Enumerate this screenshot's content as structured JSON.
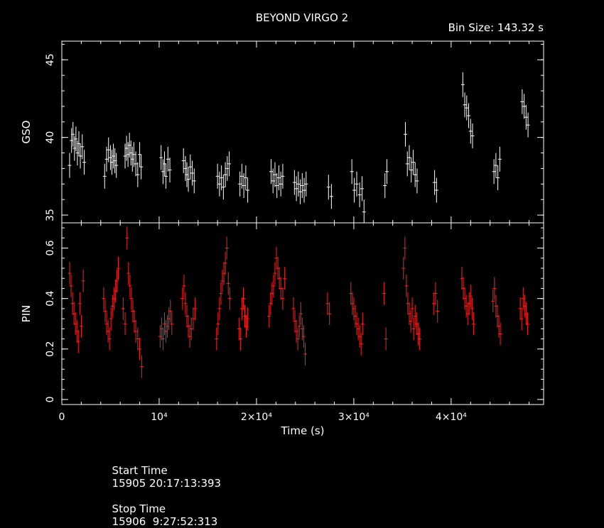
{
  "title": "BEYOND VIRGO 2",
  "bin_size_label": "Bin Size: 143.32 s",
  "footer": {
    "start_label": "Start Time",
    "start_value": "15905 20:17:13:393",
    "stop_label": "Stop Time",
    "stop_value": "15906  9:27:52:313"
  },
  "colors": {
    "background": "#000000",
    "axes": "#ffffff",
    "gso": "#ffffff",
    "pin": "#ff2020"
  },
  "chart_data": [
    {
      "type": "scatter",
      "name": "GSO",
      "ylabel": "GSO",
      "xlabel": "",
      "xlim": [
        0,
        49500
      ],
      "ylim": [
        34.5,
        46.2
      ],
      "yticks": [
        35,
        40,
        45
      ],
      "ytick_labels": [
        "35",
        "40",
        "45"
      ],
      "yerr": 0.8,
      "x": [
        800,
        1000,
        1150,
        1300,
        1450,
        1600,
        1750,
        1900,
        2100,
        2300,
        4400,
        4600,
        4800,
        5000,
        5150,
        5300,
        5450,
        5600,
        6500,
        6650,
        6800,
        6950,
        7100,
        7250,
        7400,
        7600,
        7800,
        8000,
        8150,
        10200,
        10400,
        10550,
        10700,
        10900,
        11100,
        12500,
        12700,
        12850,
        13000,
        13200,
        13400,
        13600,
        16000,
        16200,
        16400,
        16600,
        16800,
        17000,
        17200,
        18300,
        18500,
        18700,
        18900,
        19100,
        21500,
        21700,
        21900,
        22100,
        22300,
        22500,
        22700,
        23900,
        24100,
        24300,
        24500,
        24700,
        24900,
        25100,
        27400,
        27700,
        29800,
        30050,
        30300,
        30600,
        30850,
        31050,
        33200,
        33400,
        35300,
        35500,
        35700,
        35900,
        36100,
        36300,
        36500,
        38300,
        38500,
        41200,
        41400,
        41600,
        41800,
        42000,
        42200,
        44400,
        44600,
        44800,
        45000,
        47300,
        47500,
        47700,
        47900
      ],
      "y": [
        38.2,
        39.8,
        40.2,
        39.3,
        39.9,
        39.0,
        39.6,
        38.8,
        39.4,
        38.4,
        37.5,
        38.6,
        39.2,
        38.7,
        38.4,
        38.8,
        38.5,
        38.2,
        38.8,
        39.3,
        38.9,
        39.5,
        39.0,
        38.6,
        38.9,
        38.3,
        37.6,
        38.9,
        38.1,
        38.7,
        37.8,
        38.3,
        37.5,
        38.6,
        37.9,
        38.5,
        38.0,
        37.6,
        37.3,
        38.1,
        37.7,
        37.2,
        37.5,
        37.0,
        37.4,
        36.8,
        37.6,
        38.0,
        38.3,
        37.0,
        37.5,
        36.9,
        37.4,
        36.6,
        37.8,
        37.2,
        37.6,
        36.9,
        37.4,
        37.0,
        37.5,
        37.1,
        36.7,
        37.0,
        36.5,
        36.9,
        36.6,
        37.0,
        36.8,
        36.2,
        37.8,
        36.6,
        37.0,
        36.3,
        36.7,
        35.2,
        36.9,
        37.8,
        40.2,
        38.3,
        38.7,
        37.9,
        38.4,
        37.6,
        37.2,
        37.1,
        36.6,
        43.4,
        42.1,
        41.9,
        41.4,
        40.4,
        40.1,
        37.8,
        38.2,
        37.4,
        38.6,
        42.3,
        42.0,
        41.3,
        40.8
      ]
    },
    {
      "type": "scatter",
      "name": "PIN",
      "ylabel": "PIN",
      "xlabel": "Time (s)",
      "xlim": [
        0,
        49500
      ],
      "ylim": [
        -0.02,
        0.7
      ],
      "yticks": [
        0,
        0.2,
        0.4,
        0.6
      ],
      "ytick_labels": [
        "0",
        "0.2",
        "0.4",
        "0.6"
      ],
      "xticks": [
        0,
        10000,
        20000,
        30000,
        40000
      ],
      "xtick_labels": [
        "0",
        "10⁴",
        "2×10⁴",
        "3×10⁴",
        "4×10⁴"
      ],
      "yerr": 0.045,
      "x": [
        800,
        950,
        1100,
        1250,
        1400,
        1550,
        1700,
        1850,
        2000,
        2200,
        4300,
        4450,
        4600,
        4750,
        4900,
        5050,
        5200,
        5350,
        5500,
        5650,
        5800,
        6300,
        6500,
        6700,
        6850,
        7000,
        7150,
        7300,
        7450,
        7600,
        7800,
        8000,
        8200,
        10100,
        10250,
        10400,
        10550,
        10700,
        10850,
        11000,
        11150,
        11300,
        12400,
        12550,
        12700,
        12850,
        13000,
        13150,
        13300,
        13500,
        13700,
        15900,
        16050,
        16200,
        16350,
        16500,
        16650,
        16800,
        16950,
        17100,
        17250,
        18200,
        18350,
        18500,
        18650,
        18800,
        18950,
        19100,
        21300,
        21450,
        21600,
        21750,
        21900,
        22050,
        22200,
        22350,
        22500,
        22700,
        22900,
        23800,
        23950,
        24100,
        24250,
        24400,
        24550,
        24700,
        24850,
        25000,
        27300,
        27500,
        29700,
        29850,
        30000,
        30150,
        30300,
        30450,
        30600,
        30750,
        30900,
        33100,
        33300,
        35100,
        35250,
        35400,
        35550,
        35700,
        35850,
        36000,
        36150,
        36300,
        36450,
        36600,
        36750,
        38200,
        38400,
        38600,
        41100,
        41250,
        41400,
        41550,
        41700,
        41850,
        42000,
        42150,
        42300,
        44300,
        44450,
        44600,
        44750,
        44900,
        45050,
        47100,
        47250,
        47400,
        47550,
        47700,
        47850
      ],
      "y": [
        0.5,
        0.45,
        0.38,
        0.34,
        0.3,
        0.27,
        0.23,
        0.38,
        0.29,
        0.47,
        0.4,
        0.35,
        0.3,
        0.27,
        0.24,
        0.32,
        0.37,
        0.4,
        0.43,
        0.47,
        0.52,
        0.36,
        0.3,
        0.64,
        0.5,
        0.45,
        0.4,
        0.35,
        0.31,
        0.27,
        0.24,
        0.2,
        0.13,
        0.25,
        0.28,
        0.24,
        0.3,
        0.27,
        0.29,
        0.32,
        0.35,
        0.3,
        0.4,
        0.45,
        0.38,
        0.33,
        0.29,
        0.25,
        0.28,
        0.32,
        0.36,
        0.24,
        0.3,
        0.36,
        0.42,
        0.47,
        0.5,
        0.54,
        0.6,
        0.46,
        0.4,
        0.28,
        0.24,
        0.36,
        0.4,
        0.33,
        0.29,
        0.32,
        0.33,
        0.38,
        0.42,
        0.45,
        0.5,
        0.56,
        0.52,
        0.48,
        0.44,
        0.4,
        0.48,
        0.36,
        0.31,
        0.27,
        0.24,
        0.29,
        0.34,
        0.28,
        0.25,
        0.18,
        0.38,
        0.34,
        0.42,
        0.38,
        0.36,
        0.33,
        0.3,
        0.28,
        0.25,
        0.22,
        0.3,
        0.42,
        0.24,
        0.52,
        0.6,
        0.45,
        0.38,
        0.34,
        0.31,
        0.36,
        0.28,
        0.33,
        0.3,
        0.26,
        0.24,
        0.38,
        0.42,
        0.35,
        0.48,
        0.44,
        0.4,
        0.37,
        0.34,
        0.38,
        0.41,
        0.36,
        0.3,
        0.39,
        0.44,
        0.37,
        0.33,
        0.29,
        0.26,
        0.36,
        0.32,
        0.4,
        0.37,
        0.34,
        0.3
      ]
    }
  ]
}
